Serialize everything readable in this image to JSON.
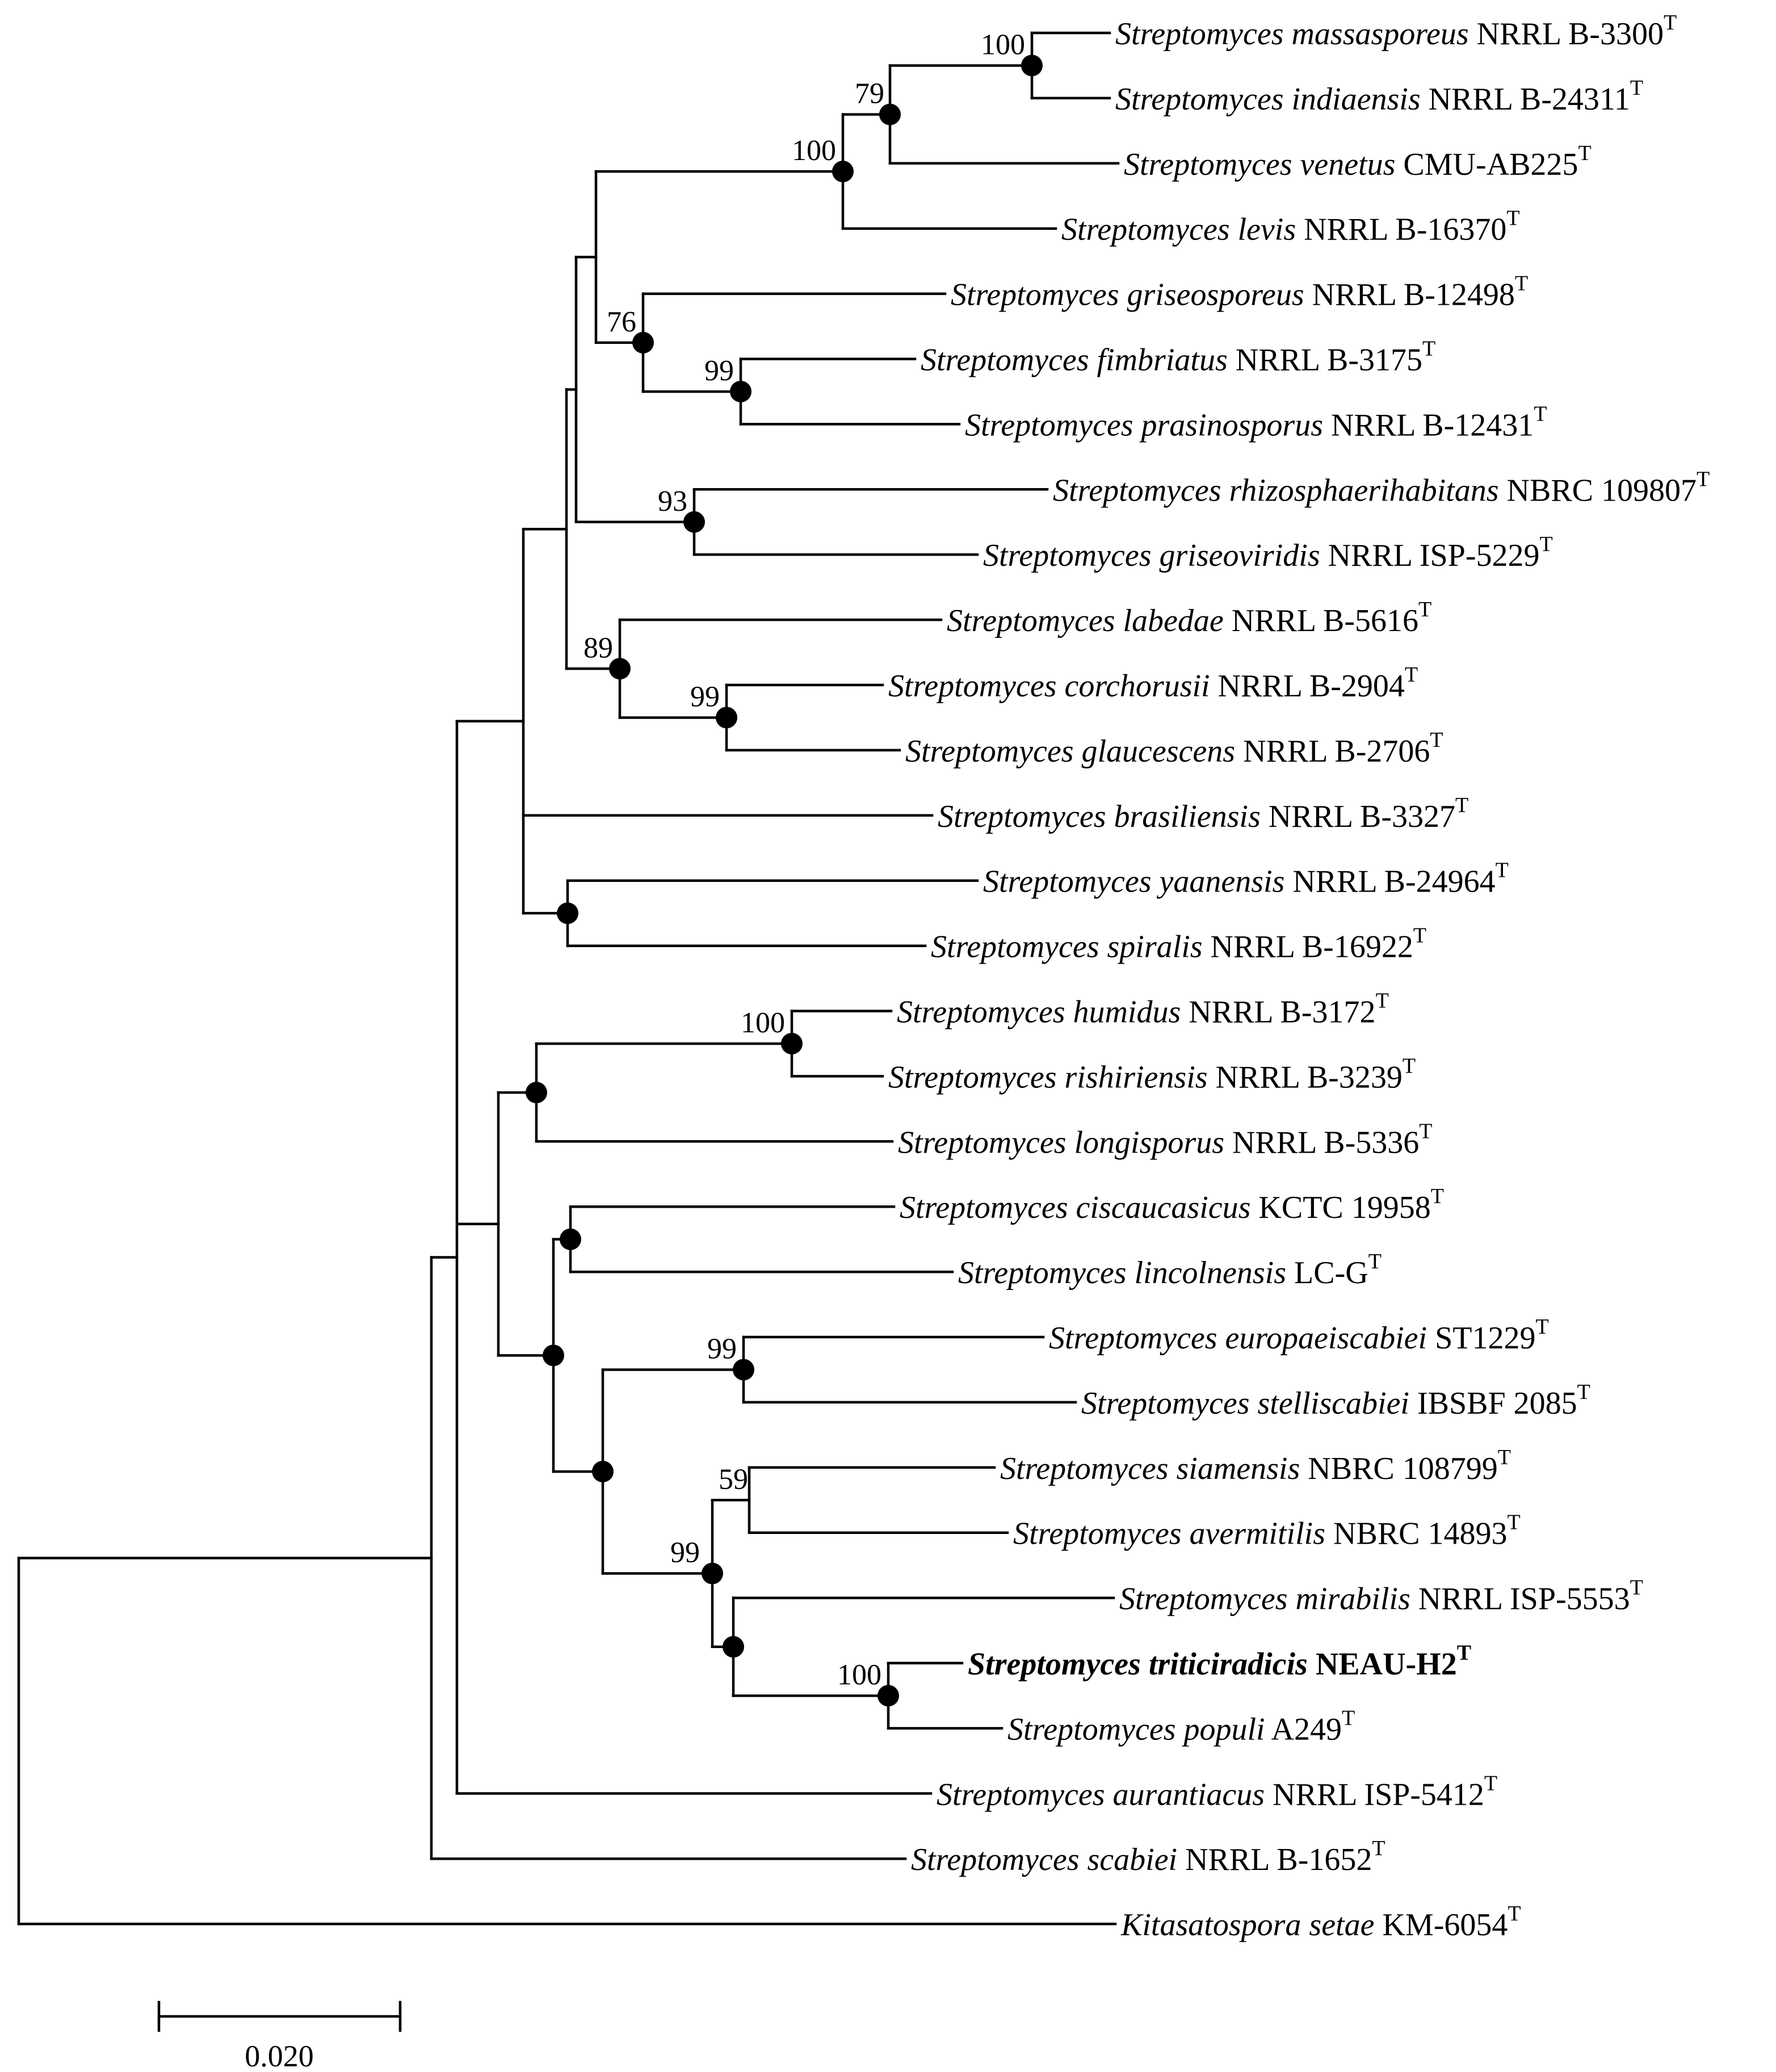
{
  "figure": {
    "type": "phylogenetic-tree",
    "scale_bar_label": "0.020",
    "scale_bar_length": 0.02,
    "superscript_marker": "T"
  },
  "taxa": [
    {
      "id": "massasporeus",
      "genus": "Streptomyces massasporeus",
      "strain": " NRRL B-3300",
      "sup": "T"
    },
    {
      "id": "indiaensis",
      "genus": "Streptomyces indiaensis",
      "strain": " NRRL B-24311",
      "sup": "T"
    },
    {
      "id": "venetus",
      "genus": "Streptomyces venetus",
      "strain": " CMU-AB225",
      "sup": "T"
    },
    {
      "id": "levis",
      "genus": "Streptomyces levis",
      "strain": " NRRL B-16370",
      "sup": "T"
    },
    {
      "id": "griseosporeus",
      "genus": "Streptomyces griseosporeus",
      "strain": " NRRL B-12498",
      "sup": "T"
    },
    {
      "id": "fimbriatus",
      "genus": "Streptomyces fimbriatus",
      "strain": " NRRL B-3175",
      "sup": "T"
    },
    {
      "id": "prasinosporus",
      "genus": "Streptomyces prasinosporus",
      "strain": " NRRL B-12431",
      "sup": "T"
    },
    {
      "id": "rhizosphaerihabitans",
      "genus": "Streptomyces rhizosphaerihabitans",
      "strain": " NBRC 109807",
      "sup": "T"
    },
    {
      "id": "griseoviridis",
      "genus": "Streptomyces griseoviridis",
      "strain": " NRRL ISP-5229",
      "sup": "T"
    },
    {
      "id": "labedae",
      "genus": "Streptomyces labedae",
      "strain": " NRRL B-5616",
      "sup": "T"
    },
    {
      "id": "corchorusii",
      "genus": "Streptomyces corchorusii",
      "strain": " NRRL B-2904",
      "sup": "T"
    },
    {
      "id": "glaucescens",
      "genus": "Streptomyces glaucescens",
      "strain": " NRRL B-2706",
      "sup": "T"
    },
    {
      "id": "brasiliensis",
      "genus": "Streptomyces brasiliensis",
      "strain": " NRRL B-3327",
      "sup": "T"
    },
    {
      "id": "yaanensis",
      "genus": "Streptomyces yaanensis",
      "strain": " NRRL B-24964",
      "sup": "T"
    },
    {
      "id": "spiralis",
      "genus": "Streptomyces spiralis",
      "strain": " NRRL B-16922",
      "sup": "T"
    },
    {
      "id": "humidus",
      "genus": "Streptomyces humidus",
      "strain": " NRRL B-3172",
      "sup": "T"
    },
    {
      "id": "rishiriensis",
      "genus": "Streptomyces rishiriensis",
      "strain": " NRRL B-3239",
      "sup": "T"
    },
    {
      "id": "longisporus",
      "genus": "Streptomyces longisporus",
      "strain": " NRRL B-5336",
      "sup": "T"
    },
    {
      "id": "ciscaucasicus",
      "genus": "Streptomyces ciscaucasicus",
      "strain": " KCTC 19958",
      "sup": "T"
    },
    {
      "id": "lincolnensis",
      "genus": "Streptomyces lincolnensis",
      "strain": " LC-G",
      "sup": "T"
    },
    {
      "id": "europaeiscabiei",
      "genus": "Streptomyces europaeiscabiei",
      "strain": " ST1229",
      "sup": "T"
    },
    {
      "id": "stelliscabiei",
      "genus": "Streptomyces stelliscabiei",
      "strain": " IBSBF 2085",
      "sup": "T"
    },
    {
      "id": "siamensis",
      "genus": "Streptomyces siamensis",
      "strain": " NBRC 108799",
      "sup": "T"
    },
    {
      "id": "avermitilis",
      "genus": "Streptomyces avermitilis",
      "strain": " NBRC 14893",
      "sup": "T"
    },
    {
      "id": "mirabilis",
      "genus": "Streptomyces mirabilis",
      "strain": " NRRL ISP-5553",
      "sup": "T"
    },
    {
      "id": "triticiradicis",
      "genus": "Streptomyces triticiradicis",
      "strain": " NEAU-H2",
      "sup": "T",
      "highlight": true
    },
    {
      "id": "populi",
      "genus": "Streptomyces populi",
      "strain": " A249",
      "sup": "T"
    },
    {
      "id": "aurantiacus",
      "genus": "Streptomyces aurantiacus",
      "strain": " NRRL ISP-5412",
      "sup": "T"
    },
    {
      "id": "scabiei",
      "genus": "Streptomyces scabiei",
      "strain": " NRRL B-1652",
      "sup": "T"
    },
    {
      "id": "setae",
      "genus": "Kitasatospora setae",
      "strain": " KM-6054",
      "sup": "T"
    }
  ],
  "bootstrap": {
    "n_mass_ind": "100",
    "n_mass_ven": "79",
    "n_top4": "100",
    "n_griseo3": "76",
    "n_fimb_pras": "99",
    "n_rhizo_griseov": "93",
    "n_lab3": "89",
    "n_corch_glauc": "99",
    "n_humid_rish": "100",
    "n_euro_stell": "99",
    "n_siam_averm": "59",
    "n_five": "99",
    "n_trit_pop": "100"
  }
}
